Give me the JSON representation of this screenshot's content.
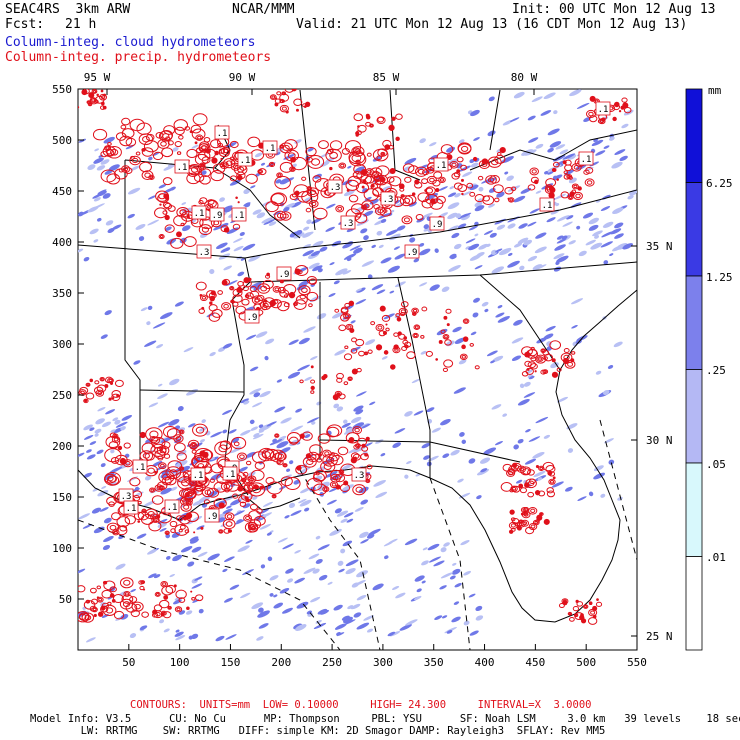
{
  "header": {
    "model": "SEAC4RS  3km ARW",
    "org": "NCAR/MMM",
    "init": "Init: 00 UTC Mon 12 Aug 13",
    "fcst_label": "Fcst:",
    "fcst_value": "21 h",
    "valid": "Valid: 21 UTC Mon 12 Aug 13 (16 CDT Mon 12 Aug 13)",
    "field1": "Column-integ. cloud hydrometeors",
    "field2": "Column-integ. precip. hydrometeors"
  },
  "map": {
    "lon_labels": [
      "95 W",
      "90 W",
      "85 W",
      "80 W"
    ],
    "lat_labels": [
      "35 N",
      "30 N",
      "25 N"
    ],
    "x_ticks": [
      "50",
      "100",
      "150",
      "200",
      "250",
      "300",
      "350",
      "400",
      "450",
      "500",
      "550"
    ],
    "y_ticks": [
      "550",
      "500",
      "450",
      "400",
      "350",
      "300",
      "250",
      "200",
      "150",
      "100",
      "50"
    ],
    "contour_labels": [
      ".1",
      ".1",
      ".1",
      ".1",
      ".1",
      ".3",
      ".9",
      ".1",
      ".3",
      ".9",
      ".3",
      ".9",
      ".9",
      ".1",
      ".1",
      ".9",
      ".3",
      ".1",
      ".9",
      ".1",
      ".3",
      ".1",
      ".1",
      ".9",
      ".3",
      ".1",
      ".1",
      ".1"
    ],
    "colors": {
      "cloud": "#6f78e8",
      "cloud_light": "#b8c0f4",
      "precip": "#e0101a",
      "border": "#000000"
    }
  },
  "colorbar": {
    "unit": "mm",
    "labels": [
      "6.25",
      "1.25",
      ".25",
      ".05",
      ".01"
    ],
    "colors": [
      "#1010d8",
      "#3a3ae4",
      "#7c80ec",
      "#b4b8f4",
      "#d8f8fc",
      "#ffffff"
    ]
  },
  "footer": {
    "contours": "CONTOURS:  UNITS=mm  LOW= 0.10000     HIGH= 24.300     INTERVAL=X  3.0000",
    "line1": "Model Info: V3.5      CU: No Cu      MP: Thompson     PBL: YSU      SF: Noah LSM     3.0 km   39 levels    18 sec",
    "line2": "        LW: RRTMG    SW: RRTMG   DIFF: simple KM: 2D Smagor DAMP: Rayleigh3  SFLAY: Rev MM5"
  }
}
